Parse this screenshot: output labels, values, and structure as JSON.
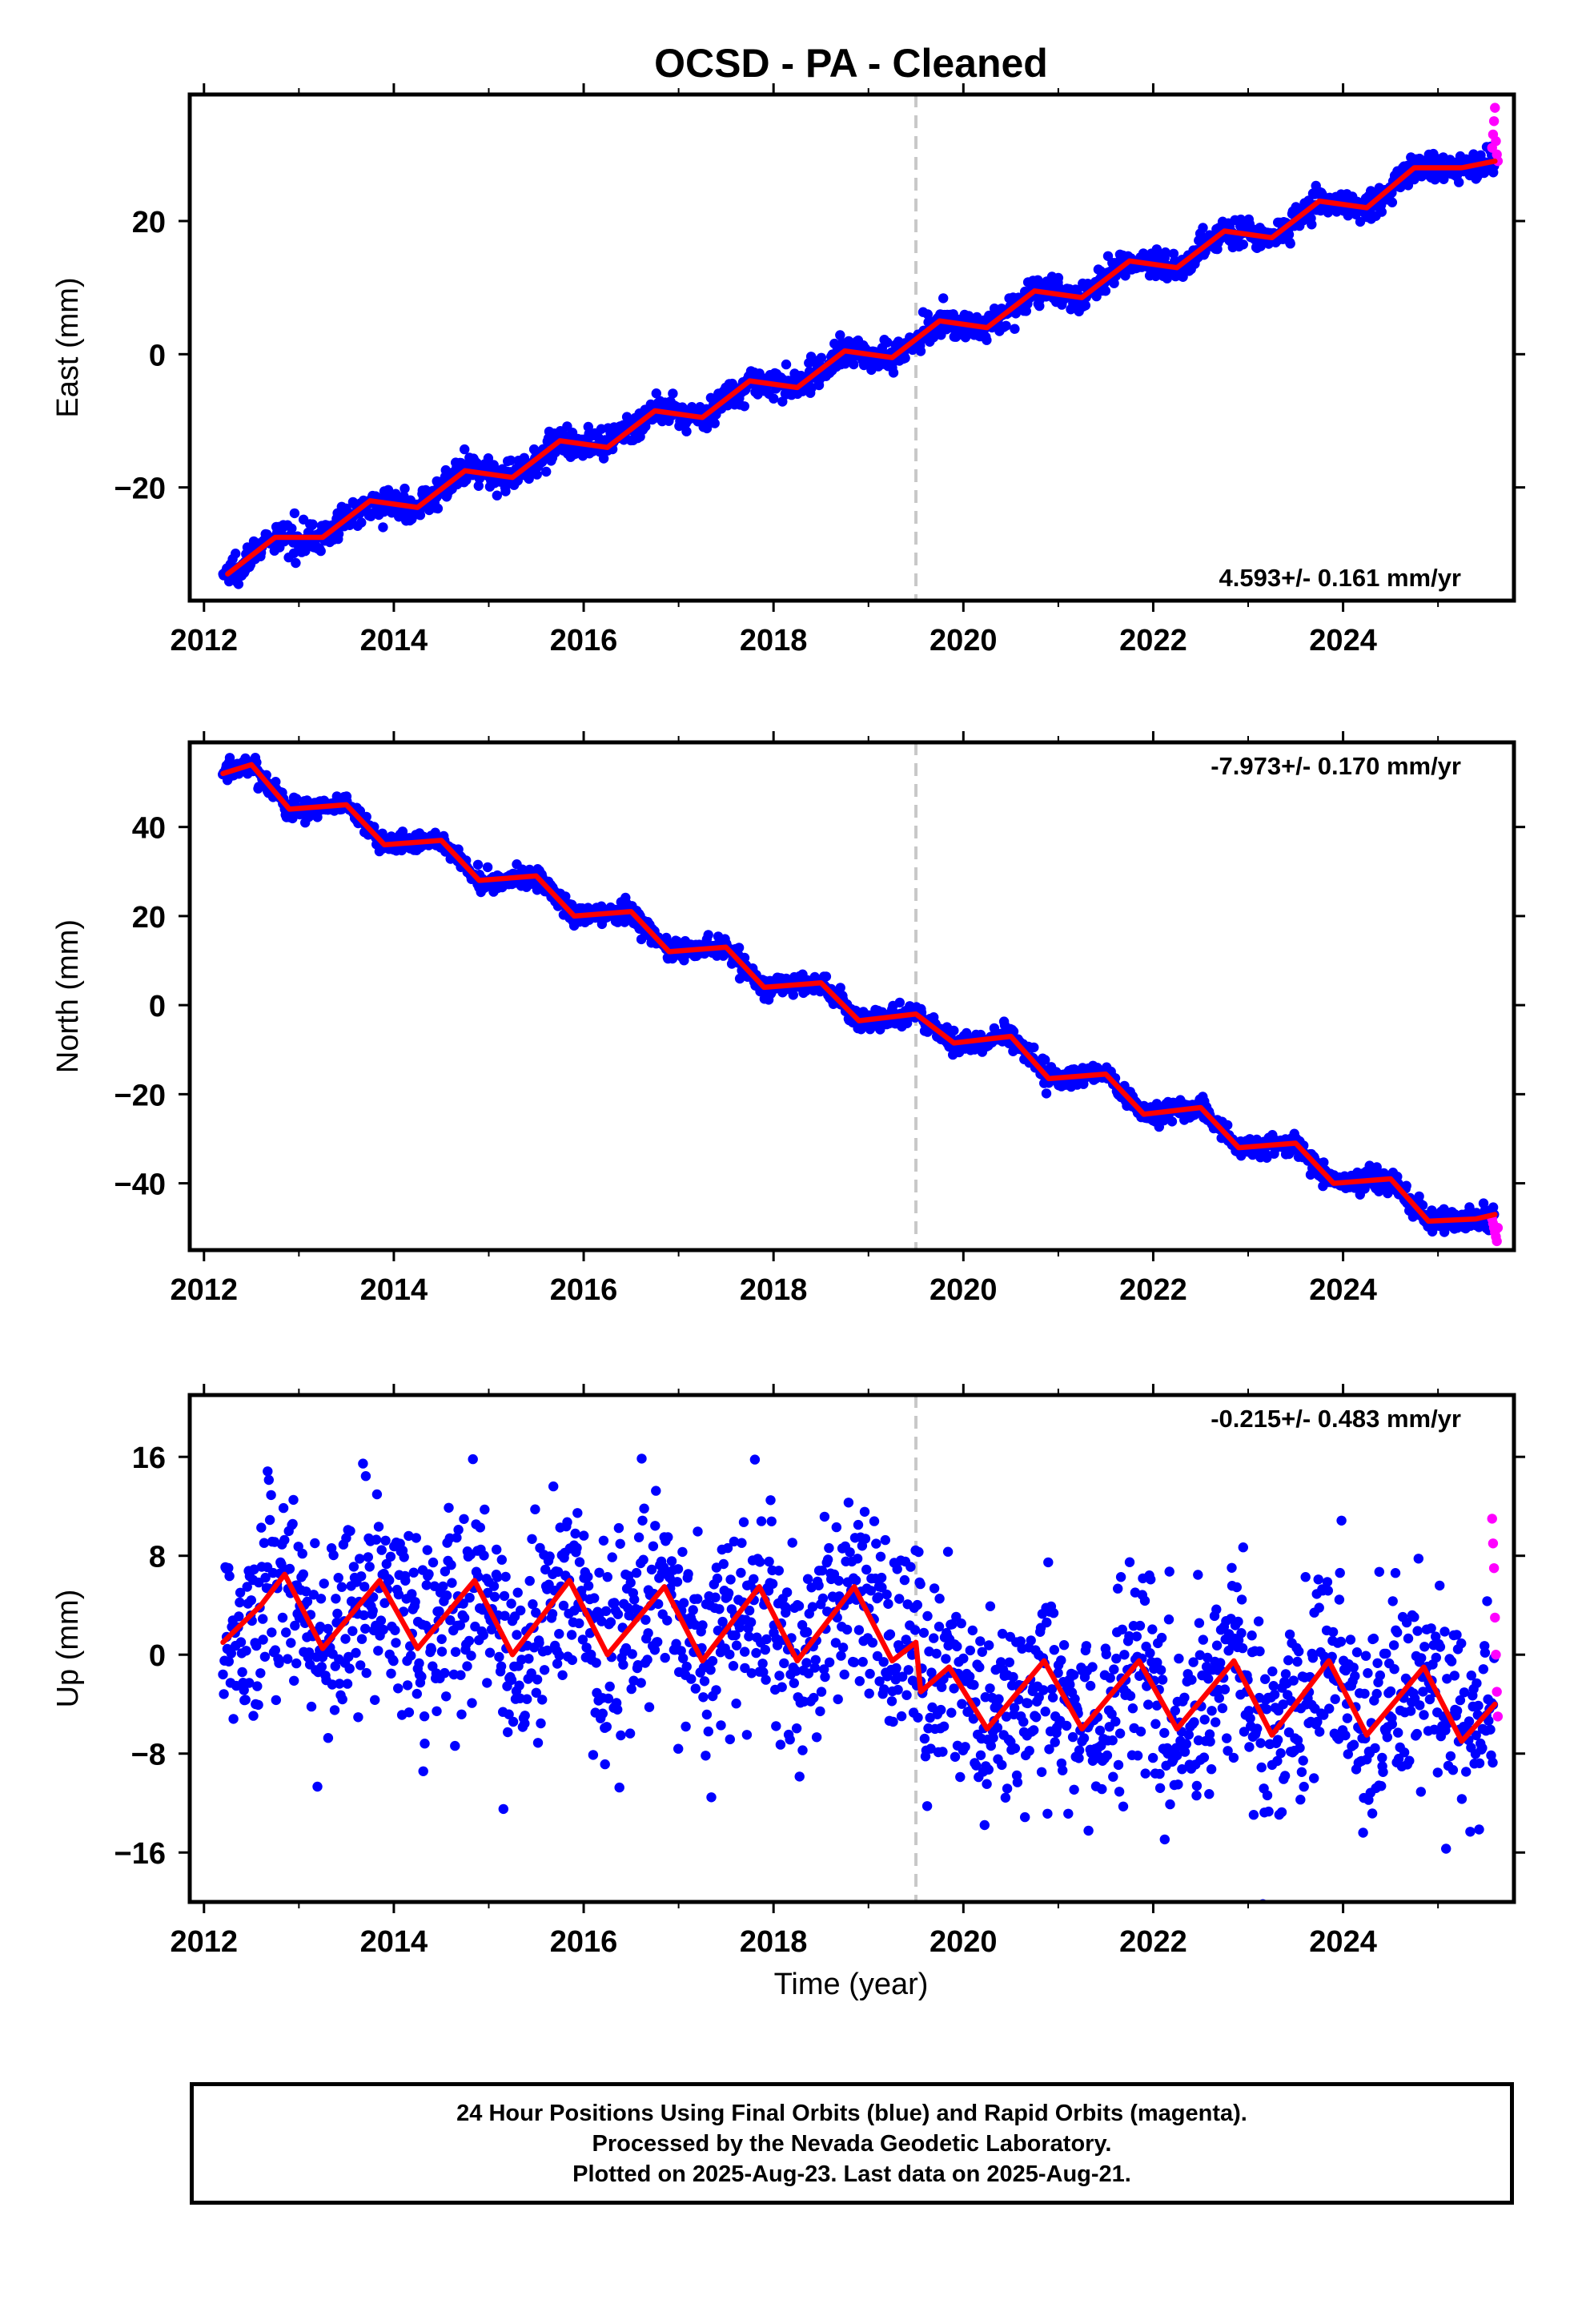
{
  "title": "OCSD  - PA - Cleaned",
  "colors": {
    "final_orbits": "#0000ff",
    "rapid_orbits": "#ff00ff",
    "model": "#ff0000",
    "event_line": "#c8c8c8"
  },
  "footer": {
    "line1": "24 Hour Positions Using Final Orbits (blue) and Rapid Orbits (magenta).",
    "line2": "Processed by the Nevada Geodetic Laboratory.",
    "line3": "Plotted on 2025-Aug-23. Last data on 2025-Aug-21."
  },
  "chart_data": [
    {
      "type": "scatter",
      "panel": "east",
      "ylabel": "East (mm)",
      "xlabel": "",
      "xlim": [
        2011.85,
        2025.8
      ],
      "ylim": [
        -37,
        39
      ],
      "yticks": [
        -20,
        0,
        20
      ],
      "xticks": [
        2012,
        2014,
        2016,
        2018,
        2020,
        2022,
        2024
      ],
      "event_line_x": 2019.5,
      "rate_label": "4.593+/- 0.161 mm/yr",
      "rate_position": "bottom-right",
      "data_span": [
        2012.2,
        2025.63
      ],
      "trend": {
        "rate_mm_per_yr": 4.593,
        "value_at_2012_2": -33.5,
        "annual_amplitude": 2.3,
        "noise": 1.1
      },
      "model_points": [
        [
          2012.25,
          -33
        ],
        [
          2012.75,
          -27.5
        ],
        [
          2013.25,
          -27.5
        ],
        [
          2013.75,
          -22
        ],
        [
          2014.25,
          -23
        ],
        [
          2014.75,
          -17.5
        ],
        [
          2015.25,
          -18.5
        ],
        [
          2015.75,
          -13
        ],
        [
          2016.25,
          -14
        ],
        [
          2016.75,
          -8.5
        ],
        [
          2017.25,
          -9.5
        ],
        [
          2017.75,
          -4
        ],
        [
          2018.25,
          -5
        ],
        [
          2018.75,
          0.5
        ],
        [
          2019.25,
          -0.5
        ],
        [
          2019.75,
          5
        ],
        [
          2020.25,
          4
        ],
        [
          2020.75,
          9.5
        ],
        [
          2021.25,
          8.5
        ],
        [
          2021.75,
          14
        ],
        [
          2022.25,
          13
        ],
        [
          2022.75,
          18.5
        ],
        [
          2023.25,
          17.5
        ],
        [
          2023.75,
          23
        ],
        [
          2024.25,
          22
        ],
        [
          2024.75,
          28
        ],
        [
          2025.25,
          28
        ],
        [
          2025.6,
          29
        ]
      ],
      "rapid_points": [
        [
          2025.57,
          31
        ],
        [
          2025.58,
          33
        ],
        [
          2025.59,
          35
        ],
        [
          2025.6,
          37
        ],
        [
          2025.61,
          32
        ],
        [
          2025.62,
          30
        ],
        [
          2025.63,
          29
        ]
      ]
    },
    {
      "type": "scatter",
      "panel": "north",
      "ylabel": "North (mm)",
      "xlabel": "",
      "xlim": [
        2011.85,
        2025.8
      ],
      "ylim": [
        -55,
        59
      ],
      "yticks": [
        -40,
        -20,
        0,
        20,
        40
      ],
      "xticks": [
        2012,
        2014,
        2016,
        2018,
        2020,
        2022,
        2024
      ],
      "event_line_x": 2019.5,
      "rate_label": "-7.973+/- 0.170 mm/yr",
      "rate_position": "top-right",
      "data_span": [
        2012.2,
        2025.63
      ],
      "trend": {
        "rate_mm_per_yr": -7.973,
        "value_at_2012_2": 52,
        "annual_amplitude": 2.8,
        "noise": 1.2
      },
      "model_points": [
        [
          2012.2,
          52
        ],
        [
          2012.5,
          54
        ],
        [
          2012.9,
          44
        ],
        [
          2013.5,
          45
        ],
        [
          2013.9,
          36
        ],
        [
          2014.5,
          37
        ],
        [
          2014.9,
          28
        ],
        [
          2015.5,
          29
        ],
        [
          2015.9,
          20
        ],
        [
          2016.5,
          21
        ],
        [
          2016.9,
          12
        ],
        [
          2017.5,
          13
        ],
        [
          2017.9,
          4
        ],
        [
          2018.5,
          5
        ],
        [
          2018.9,
          -3.5
        ],
        [
          2019.5,
          -2
        ],
        [
          2019.9,
          -8.5
        ],
        [
          2020.5,
          -7
        ],
        [
          2020.9,
          -16.5
        ],
        [
          2021.5,
          -15.5
        ],
        [
          2021.9,
          -24.5
        ],
        [
          2022.5,
          -23
        ],
        [
          2022.9,
          -32
        ],
        [
          2023.5,
          -31
        ],
        [
          2023.9,
          -40
        ],
        [
          2024.5,
          -39
        ],
        [
          2024.9,
          -48.5
        ],
        [
          2025.4,
          -48
        ],
        [
          2025.6,
          -47
        ]
      ],
      "rapid_points": [
        [
          2025.57,
          -48
        ],
        [
          2025.58,
          -49
        ],
        [
          2025.59,
          -50
        ],
        [
          2025.6,
          -51
        ],
        [
          2025.61,
          -52
        ],
        [
          2025.62,
          -53
        ],
        [
          2025.63,
          -50
        ]
      ]
    },
    {
      "type": "scatter",
      "panel": "up",
      "ylabel": "Up (mm)",
      "xlabel": "Time (year)",
      "xlim": [
        2011.85,
        2025.8
      ],
      "ylim": [
        -20,
        21
      ],
      "yticks": [
        -16,
        -8,
        0,
        8,
        16
      ],
      "xticks": [
        2012,
        2014,
        2016,
        2018,
        2020,
        2022,
        2024
      ],
      "event_line_x": 2019.5,
      "rate_label": "-0.215+/- 0.483 mm/yr",
      "rate_position": "top-right",
      "data_span": [
        2012.2,
        2025.63
      ],
      "trend": {
        "rate_mm_per_yr": -0.215,
        "value_at_2012_2": 3,
        "annual_amplitude": 3.5,
        "noise": 4.2
      },
      "model_points": [
        [
          2012.2,
          1
        ],
        [
          2012.6,
          4
        ],
        [
          2012.85,
          6.5
        ],
        [
          2013.25,
          0.5
        ],
        [
          2013.85,
          6
        ],
        [
          2014.25,
          0.5
        ],
        [
          2014.85,
          6
        ],
        [
          2015.25,
          0
        ],
        [
          2015.85,
          6
        ],
        [
          2016.25,
          0
        ],
        [
          2016.85,
          5.5
        ],
        [
          2017.25,
          -0.5
        ],
        [
          2017.85,
          5.5
        ],
        [
          2018.25,
          -0.5
        ],
        [
          2018.85,
          5.5
        ],
        [
          2019.25,
          -0.5
        ],
        [
          2019.5,
          1
        ],
        [
          2019.55,
          -3
        ],
        [
          2019.85,
          -1
        ],
        [
          2020.25,
          -6
        ],
        [
          2020.85,
          -0.5
        ],
        [
          2021.25,
          -6
        ],
        [
          2021.85,
          -0.5
        ],
        [
          2022.25,
          -6
        ],
        [
          2022.85,
          -0.5
        ],
        [
          2023.25,
          -6.5
        ],
        [
          2023.85,
          -0.5
        ],
        [
          2024.25,
          -6.5
        ],
        [
          2024.85,
          -1
        ],
        [
          2025.25,
          -7
        ],
        [
          2025.6,
          -4
        ]
      ],
      "rapid_points": [
        [
          2025.57,
          11
        ],
        [
          2025.58,
          9
        ],
        [
          2025.59,
          7
        ],
        [
          2025.6,
          3
        ],
        [
          2025.61,
          0
        ],
        [
          2025.62,
          -3
        ],
        [
          2025.63,
          -5
        ]
      ]
    }
  ]
}
